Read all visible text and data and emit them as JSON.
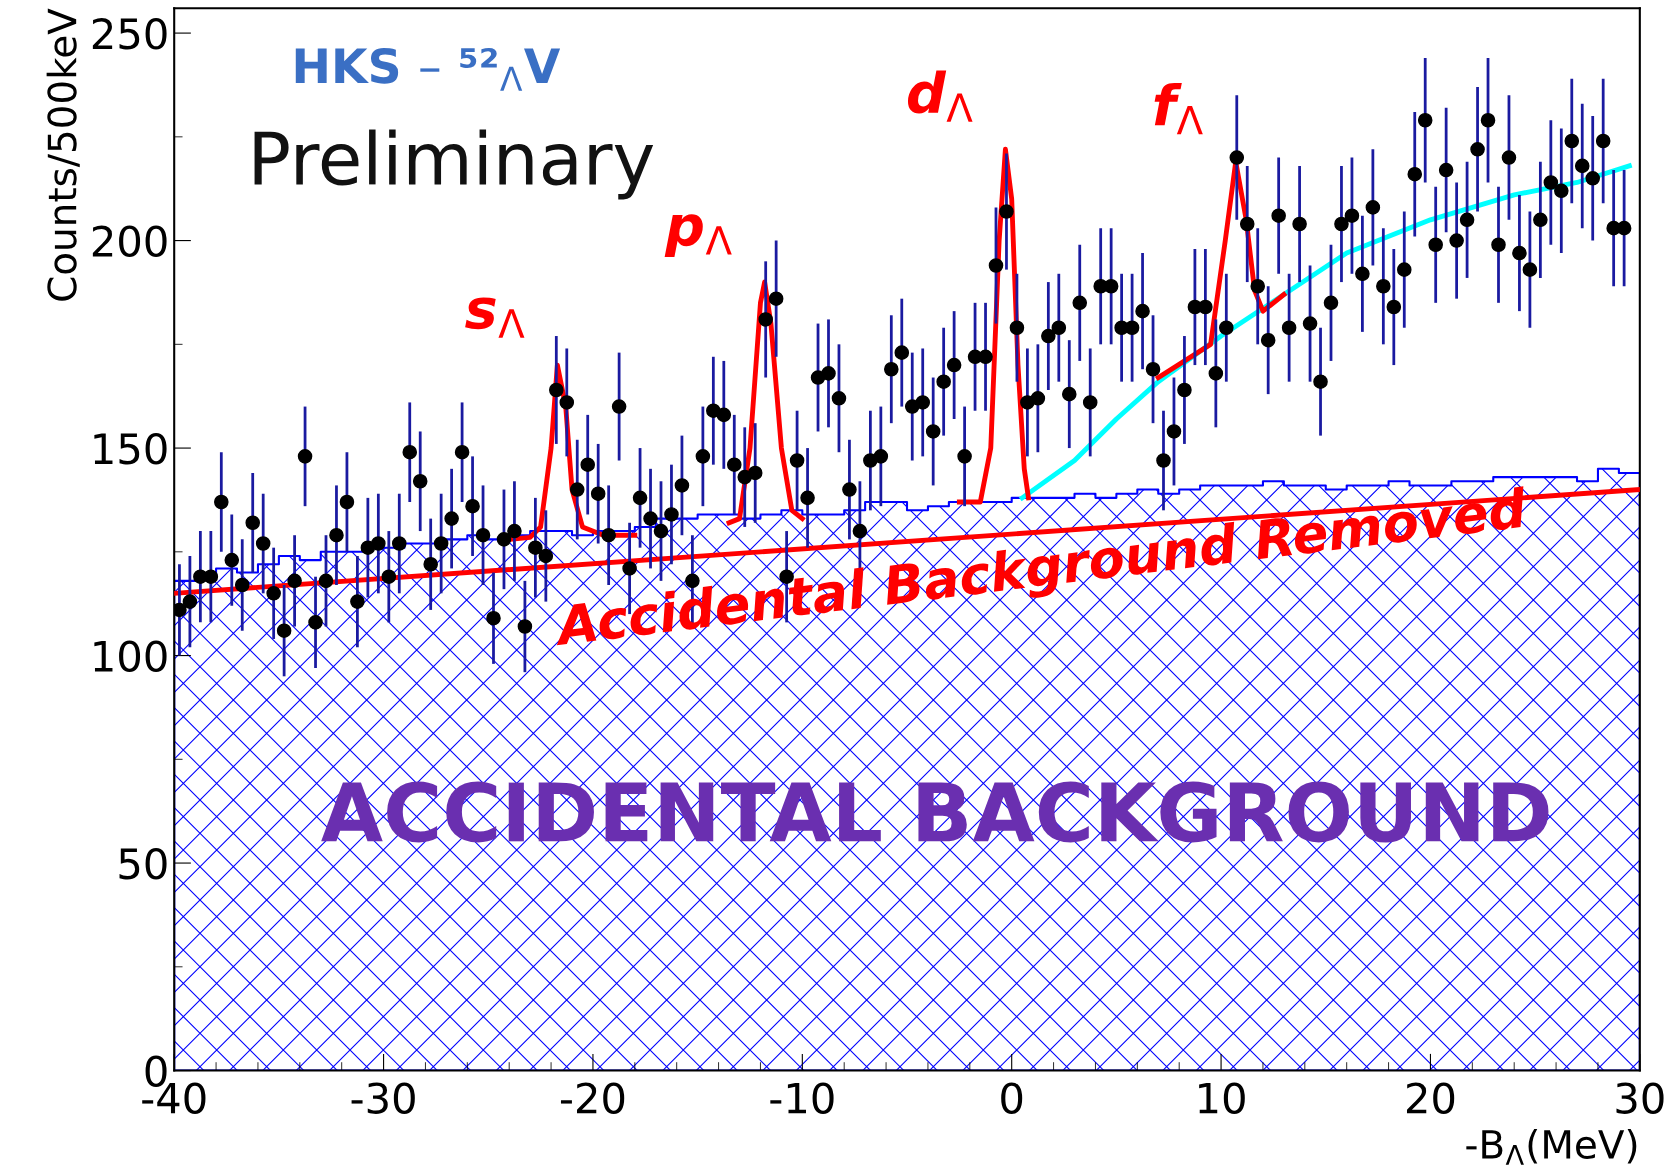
{
  "chart_data": {
    "type": "scatter",
    "xlabel": "-B$_{Λ}$(MeV)",
    "ylabel": "Counts/500keV",
    "xlim": [
      -40,
      30
    ],
    "xticks": [
      -40,
      -30,
      -20,
      -10,
      0,
      10,
      20,
      30
    ],
    "ylim": [
      0,
      256
    ],
    "yticks": [
      0,
      50,
      100,
      150,
      200,
      250
    ],
    "grid": false,
    "series": [
      {
        "type": "area",
        "color": "#0000ff",
        "x": [
          -40,
          -39,
          -38,
          -37,
          -36,
          -35,
          -34,
          -33,
          -32,
          -31,
          -30,
          -29,
          -28,
          -27,
          -26,
          -25,
          -24,
          -23,
          -22,
          -21,
          -20,
          -19,
          -18,
          -17,
          -16,
          -15,
          -14,
          -13,
          -12,
          -11,
          -10,
          -9,
          -8,
          -7,
          -6,
          -5,
          -4,
          -3,
          -2,
          -1,
          0,
          1,
          2,
          3,
          4,
          5,
          6,
          7,
          8,
          9,
          10,
          11,
          12,
          13,
          14,
          15,
          16,
          17,
          18,
          19,
          20,
          21,
          22,
          23,
          24,
          25,
          26,
          27,
          28,
          29,
          30
        ],
        "values": [
          118,
          119,
          121,
          120,
          122,
          124,
          123,
          125,
          125,
          126,
          126,
          127,
          127,
          128,
          129,
          128,
          129,
          130,
          130,
          129,
          130,
          130,
          131,
          133,
          133,
          134,
          134,
          133,
          134,
          135,
          134,
          134,
          135,
          137,
          137,
          135,
          136,
          137,
          137,
          137,
          138,
          138,
          138,
          139,
          138,
          139,
          140,
          139,
          140,
          141,
          141,
          141,
          142,
          141,
          141,
          140,
          141,
          141,
          142,
          141,
          141,
          142,
          142,
          143,
          143,
          143,
          143,
          142,
          145,
          144,
          144
        ]
      },
      {
        "type": "line",
        "color": "#ff0000",
        "x": [
          -40,
          30
        ],
        "values": [
          115,
          140
        ]
      },
      {
        "type": "line",
        "color": "#00ffff",
        "x": [
          0.5,
          3,
          5,
          7,
          10,
          13,
          16,
          20,
          24,
          27,
          29.5
        ],
        "values": [
          138,
          147,
          157,
          166,
          177,
          187,
          197,
          205,
          211,
          214,
          218
        ]
      },
      {
        "type": "line",
        "color": "#ff0000",
        "x": [
          -24,
          -23,
          -22.5,
          -22,
          -21.7,
          -21.3,
          -21,
          -20.5,
          -19.5,
          -18,
          -17.5,
          -13.5,
          -13,
          -12.5,
          -12,
          -11.8,
          -11.5,
          -11,
          -10.5,
          -10,
          -9,
          -2.5,
          -1.5,
          -1,
          -0.6,
          -0.3,
          0,
          0.3,
          0.6,
          0.8,
          1,
          7,
          9.5,
          10.2,
          10.7,
          11.2,
          11.6,
          12,
          13
        ],
        "values": [
          128,
          128.5,
          131,
          150,
          170,
          160,
          140,
          131,
          129,
          129,
          null,
          132,
          133,
          150,
          185,
          190,
          180,
          150,
          135,
          133,
          null,
          137,
          137,
          150,
          200,
          222,
          210,
          170,
          145,
          138,
          null,
          167,
          175,
          200,
          219,
          205,
          188,
          183,
          187
        ]
      },
      {
        "marker": "circle",
        "color": "#000000",
        "x": [
          -39.75,
          -39.25,
          -38.75,
          -38.25,
          -37.75,
          -37.25,
          -36.75,
          -36.25,
          -35.75,
          -35.25,
          -34.75,
          -34.25,
          -33.75,
          -33.25,
          -32.75,
          -32.25,
          -31.75,
          -31.25,
          -30.75,
          -30.25,
          -29.75,
          -29.25,
          -28.75,
          -28.25,
          -27.75,
          -27.25,
          -26.75,
          -26.25,
          -25.75,
          -25.25,
          -24.75,
          -24.25,
          -23.75,
          -23.25,
          -22.75,
          -22.25,
          -21.75,
          -21.25,
          -20.75,
          -20.25,
          -19.75,
          -19.25,
          -18.75,
          -18.25,
          -17.75,
          -17.25,
          -16.75,
          -16.25,
          -15.75,
          -15.25,
          -14.75,
          -14.25,
          -13.75,
          -13.25,
          -12.75,
          -12.25,
          -11.75,
          -11.25,
          -10.75,
          -10.25,
          -9.75,
          -9.25,
          -8.75,
          -8.25,
          -7.75,
          -7.25,
          -6.75,
          -6.25,
          -5.75,
          -5.25,
          -4.75,
          -4.25,
          -3.75,
          -3.25,
          -2.75,
          -2.25,
          -1.75,
          -1.25,
          -0.75,
          -0.25,
          0.25,
          0.75,
          1.25,
          1.75,
          2.25,
          2.75,
          3.25,
          3.75,
          4.25,
          4.75,
          5.25,
          5.75,
          6.25,
          6.75,
          7.25,
          7.75,
          8.25,
          8.75,
          9.25,
          9.75,
          10.25,
          10.75,
          11.25,
          11.75,
          12.25,
          12.75,
          13.25,
          13.75,
          14.25,
          14.75,
          15.25,
          15.75,
          16.25,
          16.75,
          17.25,
          17.75,
          18.25,
          18.75,
          19.25,
          19.75,
          20.25,
          20.75,
          21.25,
          21.75,
          22.25,
          22.75,
          23.25,
          23.75,
          24.25,
          24.75,
          25.25,
          25.75,
          26.25,
          26.75,
          27.25,
          27.75,
          28.25,
          28.75,
          29.25
        ],
        "values": [
          111,
          113,
          119,
          119,
          137,
          123,
          117,
          132,
          127,
          115,
          106,
          118,
          148,
          108,
          118,
          129,
          137,
          113,
          126,
          127,
          119,
          127,
          149,
          142,
          122,
          127,
          133,
          149,
          136,
          129,
          109,
          128,
          130,
          107,
          126,
          124,
          164,
          161,
          140,
          146,
          139,
          129,
          160,
          121,
          138,
          133,
          130,
          134,
          141,
          118,
          148,
          159,
          158,
          146,
          143,
          144,
          181,
          186,
          119,
          147,
          138,
          167,
          168,
          162,
          140,
          130,
          147,
          148,
          169,
          173,
          160,
          161,
          154,
          166,
          170,
          148,
          172,
          172,
          194,
          207,
          179,
          161,
          162,
          177,
          179,
          163,
          185,
          161,
          189,
          189,
          179,
          179,
          183,
          169,
          147,
          154,
          164,
          184,
          184,
          168,
          179,
          220,
          204,
          189,
          176,
          206,
          179,
          204,
          180,
          166,
          185,
          204,
          206,
          192,
          208,
          189,
          184,
          193,
          216,
          229,
          199,
          217,
          200,
          205,
          222,
          229,
          199,
          220,
          197,
          193,
          205,
          214,
          212,
          224,
          218,
          215,
          224,
          203,
          203
        ],
        "errors": [
          11,
          11,
          11,
          11,
          12,
          11,
          11,
          12,
          12,
          11,
          11,
          11,
          12,
          11,
          11,
          12,
          12,
          11,
          12,
          12,
          11,
          12,
          12,
          12,
          11,
          12,
          12,
          12,
          12,
          12,
          11,
          12,
          12,
          11,
          12,
          11,
          13,
          13,
          12,
          12,
          12,
          12,
          13,
          11,
          12,
          12,
          12,
          12,
          12,
          11,
          12,
          13,
          13,
          12,
          12,
          12,
          14,
          14,
          11,
          12,
          12,
          13,
          13,
          13,
          12,
          12,
          12,
          12,
          13,
          13,
          13,
          13,
          13,
          13,
          13,
          12,
          13,
          13,
          14,
          14,
          13,
          13,
          13,
          13,
          13,
          13,
          14,
          13,
          14,
          14,
          13,
          13,
          14,
          13,
          12,
          13,
          13,
          14,
          14,
          13,
          13,
          15,
          14,
          14,
          13,
          14,
          13,
          14,
          14,
          13,
          14,
          14,
          14,
          14,
          14,
          14,
          14,
          14,
          15,
          15,
          14,
          15,
          14,
          14,
          15,
          15,
          14,
          15,
          14,
          14,
          14,
          15,
          15,
          15,
          15,
          15,
          15,
          14,
          14
        ]
      }
    ],
    "annotations": [
      {
        "text": "s$_{Λ}$",
        "x": -21.7,
        "y": 170
      },
      {
        "text": "p$_{Λ}$",
        "x": -11.8,
        "y": 190
      },
      {
        "text": "d$_{Λ}$",
        "x": -0.3,
        "y": 222
      },
      {
        "text": "f$_{Λ}$",
        "x": 10.7,
        "y": 219
      },
      "HKS – ⁵²$_{Λ}$V",
      "Preliminary",
      "Accidental Background Removed",
      "ACCIDENTAL BACKGROUND"
    ]
  }
}
